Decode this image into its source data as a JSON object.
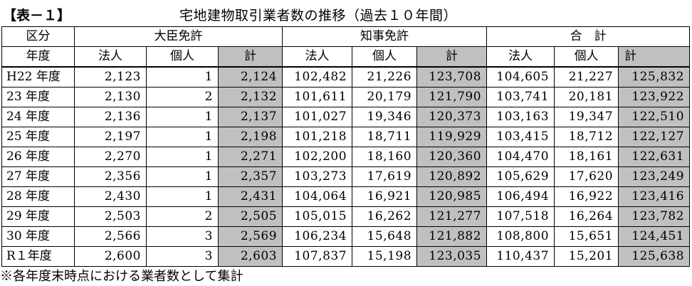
{
  "caption": {
    "label": "【表－１】",
    "title": "宅地建物取引業者数の推移（過去１０年間）"
  },
  "header": {
    "category": "区分",
    "minister": "大臣免許",
    "governor": "知事免許",
    "total": "合　計",
    "year": "年度",
    "corp": "法人",
    "indiv": "個人",
    "sum": "計"
  },
  "rows": [
    {
      "year": "H22 年度",
      "m_corp": "2,123",
      "m_indiv": "1",
      "m_sum": "2,124",
      "g_corp": "102,482",
      "g_indiv": "21,226",
      "g_sum": "123,708",
      "t_corp": "104,605",
      "t_indiv": "21,227",
      "t_sum": "125,832"
    },
    {
      "year": "23 年度",
      "m_corp": "2,130",
      "m_indiv": "2",
      "m_sum": "2,132",
      "g_corp": "101,611",
      "g_indiv": "20,179",
      "g_sum": "121,790",
      "t_corp": "103,741",
      "t_indiv": "20,181",
      "t_sum": "123,922"
    },
    {
      "year": "24 年度",
      "m_corp": "2,136",
      "m_indiv": "1",
      "m_sum": "2,137",
      "g_corp": "101,027",
      "g_indiv": "19,346",
      "g_sum": "120,373",
      "t_corp": "103,163",
      "t_indiv": "19,347",
      "t_sum": "122,510"
    },
    {
      "year": "25 年度",
      "m_corp": "2,197",
      "m_indiv": "1",
      "m_sum": "2,198",
      "g_corp": "101,218",
      "g_indiv": "18,711",
      "g_sum": "119,929",
      "t_corp": "103,415",
      "t_indiv": "18,712",
      "t_sum": "122,127"
    },
    {
      "year": "26 年度",
      "m_corp": "2,270",
      "m_indiv": "1",
      "m_sum": "2,271",
      "g_corp": "102,200",
      "g_indiv": "18,160",
      "g_sum": "120,360",
      "t_corp": "104,470",
      "t_indiv": "18,161",
      "t_sum": "122,631"
    },
    {
      "year": "27 年度",
      "m_corp": "2,356",
      "m_indiv": "1",
      "m_sum": "2,357",
      "g_corp": "103,273",
      "g_indiv": "17,619",
      "g_sum": "120,892",
      "t_corp": "105,629",
      "t_indiv": "17,620",
      "t_sum": "123,249"
    },
    {
      "year": "28 年度",
      "m_corp": "2,430",
      "m_indiv": "1",
      "m_sum": "2,431",
      "g_corp": "104,064",
      "g_indiv": "16,921",
      "g_sum": "120,985",
      "t_corp": "106,494",
      "t_indiv": "16,922",
      "t_sum": "123,416"
    },
    {
      "year": "29 年度",
      "m_corp": "2,503",
      "m_indiv": "2",
      "m_sum": "2,505",
      "g_corp": "105,015",
      "g_indiv": "16,262",
      "g_sum": "121,277",
      "t_corp": "107,518",
      "t_indiv": "16,264",
      "t_sum": "123,782"
    },
    {
      "year": "30 年度",
      "m_corp": "2,566",
      "m_indiv": "3",
      "m_sum": "2,569",
      "g_corp": "106,234",
      "g_indiv": "15,648",
      "g_sum": "121,882",
      "t_corp": "108,800",
      "t_indiv": "15,651",
      "t_sum": "124,451"
    },
    {
      "year": "R１年度",
      "m_corp": "2,600",
      "m_indiv": "3",
      "m_sum": "2,603",
      "g_corp": "107,837",
      "g_indiv": "15,198",
      "g_sum": "123,035",
      "t_corp": "110,437",
      "t_indiv": "15,201",
      "t_sum": "125,638"
    }
  ],
  "note": "※各年度末時点における業者数として集計"
}
